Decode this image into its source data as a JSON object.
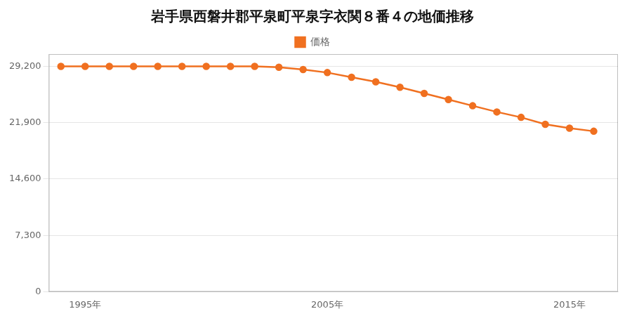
{
  "chart_data": {
    "type": "line",
    "title": "岩手県西磐井郡平泉町平泉字衣関８番４の地価推移",
    "x": [
      1994,
      1995,
      1996,
      1997,
      1998,
      1999,
      2000,
      2001,
      2002,
      2003,
      2004,
      2005,
      2006,
      2007,
      2008,
      2009,
      2010,
      2011,
      2012,
      2013,
      2014,
      2015,
      2016
    ],
    "series": [
      {
        "name": "価格",
        "color": "#f07020",
        "marker": "circle",
        "values": [
          29200,
          29200,
          29200,
          29200,
          29200,
          29200,
          29200,
          29200,
          29200,
          29100,
          28800,
          28400,
          27800,
          27200,
          26500,
          25700,
          24900,
          24100,
          23300,
          22600,
          21700,
          21200,
          20800
        ]
      }
    ],
    "xlim": [
      1993.5,
      2017.0
    ],
    "ylim": [
      0,
      30800
    ],
    "xticks": [
      {
        "value": 1995,
        "label": "1995年"
      },
      {
        "value": 2005,
        "label": "2005年"
      },
      {
        "value": 2015,
        "label": "2015年"
      }
    ],
    "yticks": [
      0,
      {
        "value": 7300,
        "label": "7,300"
      },
      {
        "value": 14600,
        "label": "14,600"
      },
      {
        "value": 21900,
        "label": "21,900"
      },
      {
        "value": 29200,
        "label": "29,200"
      }
    ],
    "grid": "y",
    "legend": "top"
  }
}
